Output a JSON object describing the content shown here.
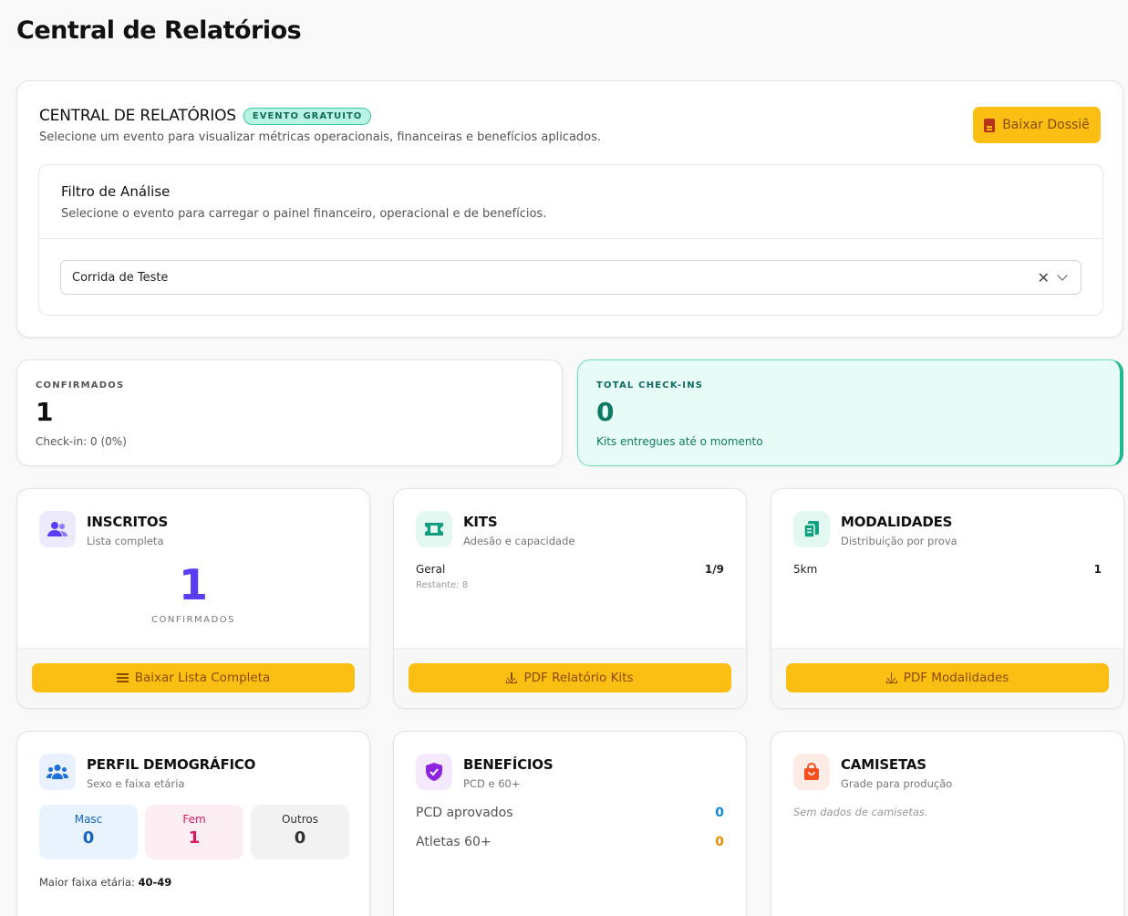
{
  "page": {
    "title": "Central de Relatórios"
  },
  "report": {
    "title": "CENTRAL DE RELATÓRIOS",
    "badge": "EVENTO GRATUITO",
    "subtitle": "Selecione um evento para visualizar métricas operacionais, financeiras e benefícios aplicados.",
    "dossie_button": "Baixar Dossiê",
    "filter": {
      "title": "Filtro de Análise",
      "subtitle": "Selecione o evento para carregar o painel financeiro, operacional e de benefícios.",
      "selected_event": "Corrida de Teste",
      "clear_symbol": "✕"
    }
  },
  "stats": {
    "confirmados": {
      "label": "CONFIRMADOS",
      "value": "1",
      "sub": "Check-in: 0 (0%)"
    },
    "checkins": {
      "label": "TOTAL CHECK-INS",
      "value": "0",
      "sub": "Kits entregues até o momento"
    }
  },
  "inscritos": {
    "title": "INSCRITOS",
    "subtitle": "Lista completa",
    "count": "1",
    "count_label": "CONFIRMADOS",
    "button": "Baixar Lista Completa",
    "icon": "users-icon",
    "icon_color": "#5b3df5"
  },
  "kits": {
    "title": "KITS",
    "subtitle": "Adesão e capacidade",
    "rows": [
      {
        "name": "Geral",
        "value": "1/9",
        "remaining": "Restante: 8"
      }
    ],
    "button": "PDF Relatório Kits",
    "icon": "ticket-icon",
    "icon_color": "#0f9f7e"
  },
  "modalidades": {
    "title": "MODALIDADES",
    "subtitle": "Distribuição por prova",
    "rows": [
      {
        "name": "5km",
        "value": "1"
      }
    ],
    "button": "PDF Modalidades",
    "icon": "clipboard-icon",
    "icon_color": "#0f9f7e"
  },
  "perfil": {
    "title": "PERFIL DEMOGRÁFICO",
    "subtitle": "Sexo e faixa etária",
    "masc": {
      "label": "Masc",
      "value": "0"
    },
    "fem": {
      "label": "Fem",
      "value": "1"
    },
    "outros": {
      "label": "Outros",
      "value": "0"
    },
    "age_label": "Maior faixa etária:",
    "age_value": "40-49",
    "icon": "people-group-icon",
    "icon_color": "#1e6fd9"
  },
  "beneficios": {
    "title": "BENEFÍCIOS",
    "subtitle": "PCD e 60+",
    "pcd": {
      "label": "PCD aprovados",
      "value": "0"
    },
    "sixty": {
      "label": "Atletas 60+",
      "value": "0"
    },
    "icon": "shield-check-icon",
    "icon_color": "#8e24e0"
  },
  "camisetas": {
    "title": "CAMISETAS",
    "subtitle": "Grade para produção",
    "empty": "Sem dados de camisetas.",
    "icon": "shopping-bag-icon",
    "icon_color": "#f4511e"
  }
}
